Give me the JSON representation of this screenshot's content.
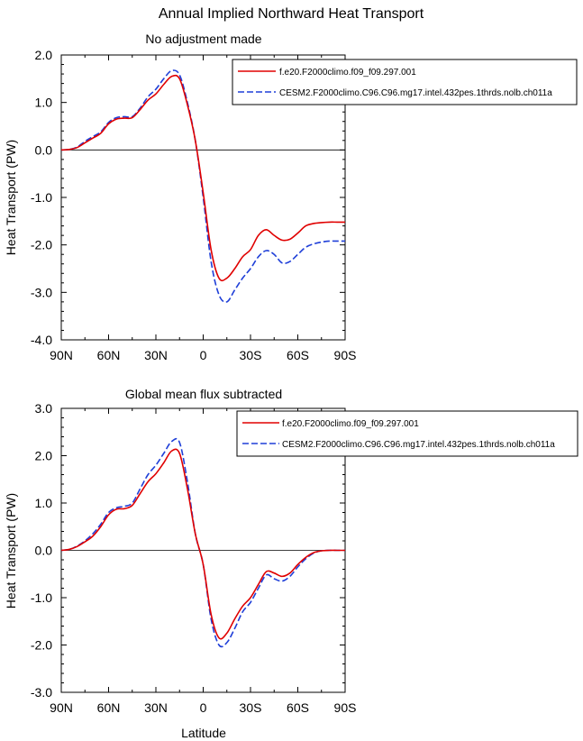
{
  "figure_title": "Annual Implied Northward Heat Transport",
  "chart_data": [
    {
      "type": "line",
      "title": "No adjustment made",
      "xlabel": "",
      "ylabel": "Heat Transport (PW)",
      "xlim": [
        90,
        -90
      ],
      "ylim": [
        -4.0,
        2.0
      ],
      "x_ticks": [
        90,
        60,
        30,
        0,
        -30,
        -60,
        -90
      ],
      "x_tick_labels": [
        "90N",
        "60N",
        "30N",
        "0",
        "30S",
        "60S",
        "90S"
      ],
      "y_ticks": [
        2.0,
        1.0,
        0.0,
        -1.0,
        -2.0,
        -3.0,
        -4.0
      ],
      "y_tick_labels": [
        "2.0",
        "1.0",
        "0.0",
        "-1.0",
        "-2.0",
        "-3.0",
        "-4.0"
      ],
      "zero_line": true,
      "legend_position": "top-right",
      "series": [
        {
          "name": "f.e20.F2000climo.f09_f09.297.001",
          "color": "#e00000",
          "dash": "solid",
          "x": [
            90,
            85,
            80,
            75,
            70,
            65,
            60,
            55,
            50,
            45,
            40,
            35,
            30,
            25,
            20,
            15,
            10,
            5,
            0,
            -5,
            -10,
            -15,
            -20,
            -25,
            -30,
            -35,
            -40,
            -45,
            -50,
            -55,
            -60,
            -65,
            -70,
            -75,
            -80,
            -85,
            -90
          ],
          "values": [
            0.0,
            0.01,
            0.05,
            0.15,
            0.25,
            0.35,
            0.55,
            0.65,
            0.67,
            0.68,
            0.85,
            1.05,
            1.18,
            1.38,
            1.55,
            1.5,
            0.95,
            0.2,
            -0.9,
            -2.1,
            -2.7,
            -2.7,
            -2.5,
            -2.25,
            -2.1,
            -1.8,
            -1.68,
            -1.8,
            -1.9,
            -1.88,
            -1.75,
            -1.6,
            -1.55,
            -1.53,
            -1.52,
            -1.52,
            -1.52
          ]
        },
        {
          "name": "CESM2.F2000climo.C96.C96.mg17.intel.432pes.1thrds.nolb.ch011a",
          "color": "#1f3fd8",
          "dash": "dashed",
          "x": [
            90,
            85,
            80,
            75,
            70,
            65,
            60,
            55,
            50,
            45,
            40,
            35,
            30,
            25,
            20,
            15,
            10,
            5,
            0,
            -5,
            -10,
            -15,
            -20,
            -25,
            -30,
            -35,
            -40,
            -45,
            -50,
            -55,
            -60,
            -65,
            -70,
            -75,
            -80,
            -85,
            -90
          ],
          "values": [
            0.0,
            0.01,
            0.06,
            0.18,
            0.28,
            0.38,
            0.58,
            0.68,
            0.7,
            0.7,
            0.88,
            1.12,
            1.28,
            1.5,
            1.67,
            1.58,
            1.0,
            0.2,
            -1.0,
            -2.35,
            -3.05,
            -3.2,
            -2.95,
            -2.7,
            -2.5,
            -2.25,
            -2.12,
            -2.2,
            -2.38,
            -2.35,
            -2.2,
            -2.05,
            -1.98,
            -1.94,
            -1.92,
            -1.92,
            -1.92
          ]
        }
      ]
    },
    {
      "type": "line",
      "title": "Global mean flux subtracted",
      "xlabel": "Latitude",
      "ylabel": "Heat Transport (PW)",
      "xlim": [
        90,
        -90
      ],
      "ylim": [
        -3.0,
        3.0
      ],
      "x_ticks": [
        90,
        60,
        30,
        0,
        -30,
        -60,
        -90
      ],
      "x_tick_labels": [
        "90N",
        "60N",
        "30N",
        "0",
        "30S",
        "60S",
        "90S"
      ],
      "y_ticks": [
        3.0,
        2.0,
        1.0,
        0.0,
        -1.0,
        -2.0,
        -3.0
      ],
      "y_tick_labels": [
        "3.0",
        "2.0",
        "1.0",
        "0.0",
        "-1.0",
        "-2.0",
        "-3.0"
      ],
      "zero_line": true,
      "legend_position": "top-right",
      "series": [
        {
          "name": "f.e20.F2000climo.f09_f09.297.001",
          "color": "#e00000",
          "dash": "solid",
          "x": [
            90,
            85,
            80,
            75,
            70,
            65,
            60,
            55,
            50,
            45,
            40,
            35,
            30,
            25,
            20,
            15,
            10,
            5,
            0,
            -5,
            -10,
            -15,
            -20,
            -25,
            -30,
            -35,
            -40,
            -45,
            -50,
            -55,
            -60,
            -65,
            -70,
            -75,
            -80,
            -85,
            -90
          ],
          "values": [
            0.0,
            0.02,
            0.08,
            0.18,
            0.3,
            0.5,
            0.75,
            0.87,
            0.88,
            0.95,
            1.2,
            1.45,
            1.62,
            1.85,
            2.1,
            2.05,
            1.3,
            0.35,
            -0.3,
            -1.35,
            -1.85,
            -1.75,
            -1.45,
            -1.18,
            -1.0,
            -0.72,
            -0.45,
            -0.48,
            -0.55,
            -0.48,
            -0.3,
            -0.15,
            -0.05,
            -0.01,
            0.0,
            0.0,
            0.0
          ]
        },
        {
          "name": "CESM2.F2000climo.C96.C96.mg17.intel.432pes.1thrds.nolb.ch011a",
          "color": "#1f3fd8",
          "dash": "dashed",
          "x": [
            90,
            85,
            80,
            75,
            70,
            65,
            60,
            55,
            50,
            45,
            40,
            35,
            30,
            25,
            20,
            15,
            10,
            5,
            0,
            -5,
            -10,
            -15,
            -20,
            -25,
            -30,
            -35,
            -40,
            -45,
            -50,
            -55,
            -60,
            -65,
            -70,
            -75,
            -80,
            -85,
            -90
          ],
          "values": [
            0.0,
            0.02,
            0.09,
            0.2,
            0.35,
            0.55,
            0.8,
            0.9,
            0.93,
            1.0,
            1.3,
            1.6,
            1.8,
            2.05,
            2.3,
            2.28,
            1.45,
            0.35,
            -0.3,
            -1.45,
            -2.0,
            -1.95,
            -1.65,
            -1.3,
            -1.1,
            -0.8,
            -0.52,
            -0.6,
            -0.65,
            -0.55,
            -0.35,
            -0.18,
            -0.06,
            -0.01,
            0.0,
            0.0,
            0.0
          ]
        }
      ]
    }
  ]
}
